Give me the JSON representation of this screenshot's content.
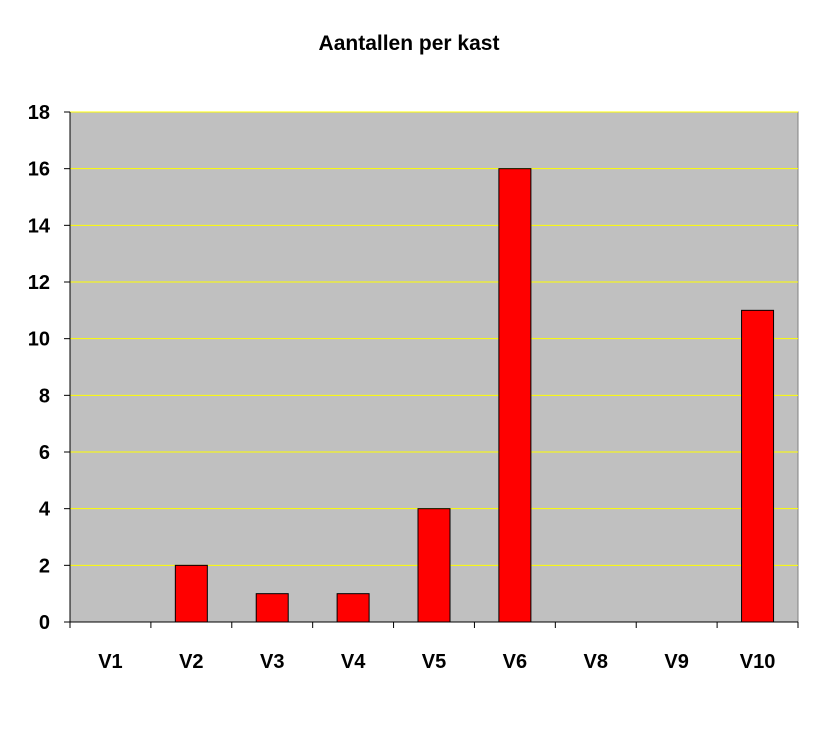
{
  "chart_data": {
    "type": "bar",
    "title": "Aantallen per kast",
    "xlabel": "",
    "ylabel": "",
    "categories": [
      "V1",
      "V2",
      "V3",
      "V4",
      "V5",
      "V6",
      "V8",
      "V9",
      "V10"
    ],
    "values": [
      0,
      2,
      1,
      1,
      4,
      16,
      0,
      0,
      11
    ],
    "ylim": [
      0,
      18
    ],
    "y_ticks": [
      0,
      2,
      4,
      6,
      8,
      10,
      12,
      14,
      16,
      18
    ],
    "grid": true,
    "legend": "none",
    "colors": {
      "bar_fill": "#ff0000",
      "bar_stroke": "#000000",
      "plot_background": "#c0c0c0",
      "gridline": "#ffff00",
      "axis": "#000000"
    }
  }
}
